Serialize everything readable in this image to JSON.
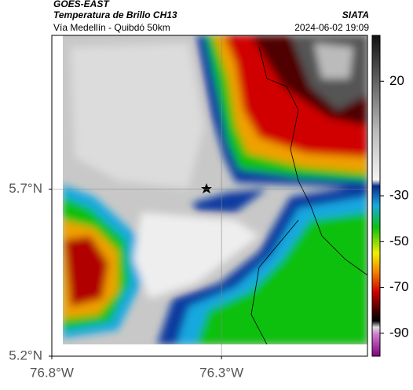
{
  "header": {
    "source": "GOES-EAST",
    "product": "Temperatura de Brillo CH13",
    "route": "Vía Medellín - Quibdó 50km",
    "agency": "SIATA",
    "datetime": "2024-06-02 19:09"
  },
  "map": {
    "xlim": [
      -76.8,
      -75.87
    ],
    "ylim": [
      5.2,
      6.16
    ],
    "xticks": [
      {
        "value": -76.8,
        "label": "76.8°W"
      },
      {
        "value": -76.3,
        "label": "76.3°W"
      }
    ],
    "yticks": [
      {
        "value": 5.2,
        "label": "5.2°N"
      },
      {
        "value": 5.7,
        "label": "5.7°N"
      }
    ],
    "grid_x": [
      -76.3
    ],
    "grid_y": [
      5.7
    ]
  },
  "colorbar": {
    "lim": [
      40,
      -100
    ],
    "ticks": [
      20,
      -30,
      -50,
      -70,
      -90
    ]
  }
}
